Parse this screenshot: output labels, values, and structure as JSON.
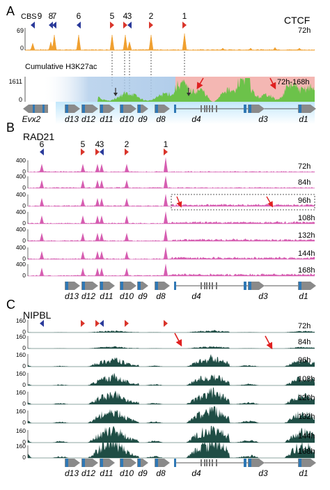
{
  "panel_a": {
    "letter": "A",
    "ctcf_label": "CTCF",
    "cbs_label": "CBS",
    "cbs_sites": [
      "9",
      "8",
      "7",
      "6",
      "5",
      "4",
      "3",
      "2",
      "1"
    ],
    "cbs_orientation": [
      "rev",
      "rev",
      "rev",
      "rev",
      "fwd",
      "fwd",
      "rev",
      "fwd",
      "fwd"
    ],
    "ctcf_scale_max": "69",
    "ctcf_scale_min": "0",
    "ctcf_time": "72h",
    "h3k27ac_label": "Cumulative H3K27ac",
    "h3k27ac_scale_max": "1611",
    "h3k27ac_scale_min": "0",
    "h3k27ac_time": "72h-168h"
  },
  "genes": [
    "Evx2",
    "d13",
    "d12",
    "d11",
    "d10",
    "d9",
    "d8",
    "d4",
    "d3",
    "d1"
  ],
  "panel_b": {
    "letter": "B",
    "title": "RAD21",
    "cbs_sites": [
      "6",
      "5",
      "4",
      "3",
      "2",
      "1"
    ],
    "scale_max": "400",
    "scale_min": "0",
    "tracks": [
      "72h",
      "84h",
      "96h",
      "108h",
      "132h",
      "144h",
      "168h"
    ]
  },
  "panel_c": {
    "letter": "C",
    "title": "NIPBL",
    "scale_max": "160",
    "scale_min": "0",
    "tracks": [
      "72h",
      "84h",
      "96h",
      "108h",
      "120h",
      "132h",
      "144h",
      "168h"
    ]
  },
  "colors": {
    "ctcf": "#f0a030",
    "h3k27ac": "#6cc24a",
    "rad21": "#d65db1",
    "nipbl": "#1f4d45",
    "cbs_forward": "#d9352b",
    "cbs_reverse": "#2a3a9a",
    "gene_arrow": "#8a8a8a",
    "exon": "#2f78b5",
    "highlight_arrow": "#e02020",
    "region_blue": "#a9c8e8",
    "region_red": "#f4b7b3"
  },
  "icons": {
    "cbs_forward": "red-triangle-right",
    "cbs_reverse": "blue-triangle-left",
    "pointer": "red-arrow"
  }
}
